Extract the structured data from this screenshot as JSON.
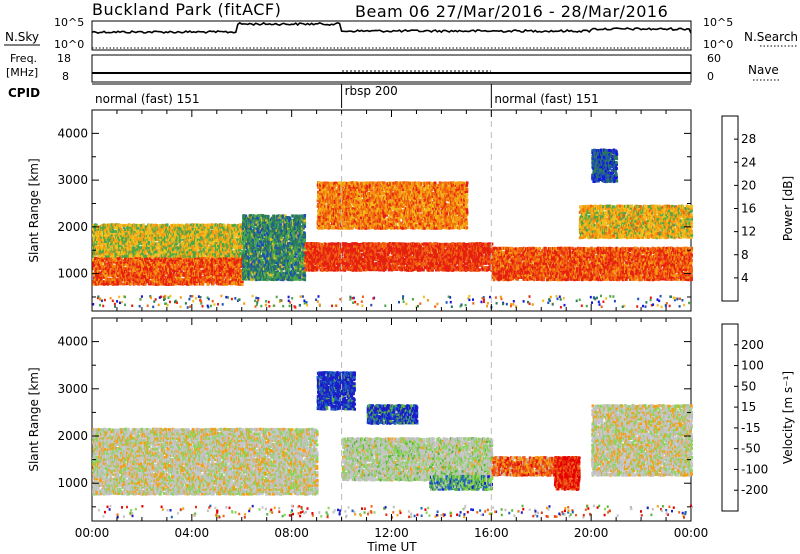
{
  "header": {
    "station": "Buckland Park (fitACF)",
    "beam_dates": "Beam 06  27/Mar/2016 - 28/Mar/2016"
  },
  "strip_labels": {
    "nsky": "N.Sky",
    "nsky_ticks": [
      "10^5",
      "10^0"
    ],
    "nsearch": "N.Search",
    "nsearch_ticks": [
      "10^5",
      "10^0"
    ],
    "freq_line1": "Freq.",
    "freq_line2": "[MHz]",
    "freq_ticks": [
      "18",
      "8"
    ],
    "nave": "Nave",
    "nave_ticks": [
      "60",
      "0"
    ],
    "cpid": "CPID"
  },
  "cpid_segments": [
    {
      "label": "normal (fast) 151",
      "start": 0,
      "end": 10
    },
    {
      "label": "rbsp 200",
      "start": 10,
      "end": 16
    },
    {
      "label": "normal (fast) 151",
      "start": 16,
      "end": 24
    }
  ],
  "colors": {
    "power": [
      "#1414dc",
      "#1e50b4",
      "#2b7a5a",
      "#4aa84a",
      "#f0c020",
      "#f59a10",
      "#f06010",
      "#e62010"
    ],
    "velocity": [
      "#1c1cc8",
      "#1e64be",
      "#5ab43c",
      "#8cd45a",
      "#c8c8c8",
      "#c0c0c0",
      "#f5a014",
      "#f06414",
      "#e63214",
      "#e60000"
    ]
  },
  "chart_data": [
    {
      "type": "heatmap",
      "title": "",
      "xlabel": "Time UT",
      "ylabel": "Slant Range [km]",
      "xlim": [
        0,
        24
      ],
      "ylim": [
        200,
        4500
      ],
      "x_ticks": [
        0,
        4,
        8,
        12,
        16,
        20,
        24
      ],
      "x_tick_labels": [
        "00:00",
        "04:00",
        "08:00",
        "12:00",
        "16:00",
        "20:00",
        "00:00"
      ],
      "y_ticks": [
        1000,
        2000,
        3000,
        4000
      ],
      "y_tick_labels": [
        "1000",
        "2000",
        "3000",
        "4000"
      ],
      "colorbar_label": "Power [dB]",
      "colorbar_ticks": [
        "4",
        "8",
        "12",
        "16",
        "20",
        "24",
        "28"
      ],
      "colorbar_range": [
        0,
        32
      ],
      "regions": [
        {
          "t0": 0,
          "t1": 6,
          "r0": 800,
          "r1": 1400,
          "level": 0.85
        },
        {
          "t0": 0,
          "t1": 6,
          "r0": 1400,
          "r1": 2100,
          "level": 0.55
        },
        {
          "t0": 6,
          "t1": 8.5,
          "r0": 900,
          "r1": 2300,
          "level": 0.35
        },
        {
          "t0": 8.5,
          "t1": 16,
          "r0": 1100,
          "r1": 1700,
          "level": 0.92
        },
        {
          "t0": 9,
          "t1": 15,
          "r0": 2000,
          "r1": 3000,
          "level": 0.75
        },
        {
          "t0": 16,
          "t1": 24,
          "r0": 900,
          "r1": 1600,
          "level": 0.85
        },
        {
          "t0": 19.5,
          "t1": 24,
          "r0": 1800,
          "r1": 2500,
          "level": 0.6
        },
        {
          "t0": 20,
          "t1": 21,
          "r0": 3000,
          "r1": 3700,
          "level": 0.2
        }
      ]
    },
    {
      "type": "heatmap",
      "title": "",
      "xlabel": "Time UT",
      "ylabel": "Slant Range [km]",
      "xlim": [
        0,
        24
      ],
      "ylim": [
        200,
        4500
      ],
      "x_ticks": [
        0,
        4,
        8,
        12,
        16,
        20,
        24
      ],
      "x_tick_labels": [
        "00:00",
        "04:00",
        "08:00",
        "12:00",
        "16:00",
        "20:00",
        "00:00"
      ],
      "y_ticks": [
        1000,
        2000,
        3000,
        4000
      ],
      "y_tick_labels": [
        "1000",
        "2000",
        "3000",
        "4000"
      ],
      "colorbar_label": "Velocity [m s⁻¹]",
      "colorbar_ticks": [
        "200",
        "100",
        "50",
        "15",
        "-15",
        "-50",
        "-100",
        "-200"
      ],
      "colorbar_range": [
        -250,
        250
      ],
      "regions": [
        {
          "t0": 0,
          "t1": 9,
          "r0": 800,
          "r1": 2200,
          "level": 0.5
        },
        {
          "t0": 9,
          "t1": 10.5,
          "r0": 2600,
          "r1": 3400,
          "level": 0.05
        },
        {
          "t0": 11,
          "t1": 13,
          "r0": 2300,
          "r1": 2700,
          "level": 0.1
        },
        {
          "t0": 10,
          "t1": 16,
          "r0": 1100,
          "r1": 2000,
          "level": 0.45
        },
        {
          "t0": 13.5,
          "t1": 16,
          "r0": 900,
          "r1": 1200,
          "level": 0.25
        },
        {
          "t0": 16,
          "t1": 19.5,
          "r0": 1200,
          "r1": 1600,
          "level": 0.75
        },
        {
          "t0": 18.5,
          "t1": 19.5,
          "r0": 900,
          "r1": 1600,
          "level": 0.9
        },
        {
          "t0": 20,
          "t1": 24,
          "r0": 1200,
          "r1": 2700,
          "level": 0.5
        }
      ]
    }
  ]
}
